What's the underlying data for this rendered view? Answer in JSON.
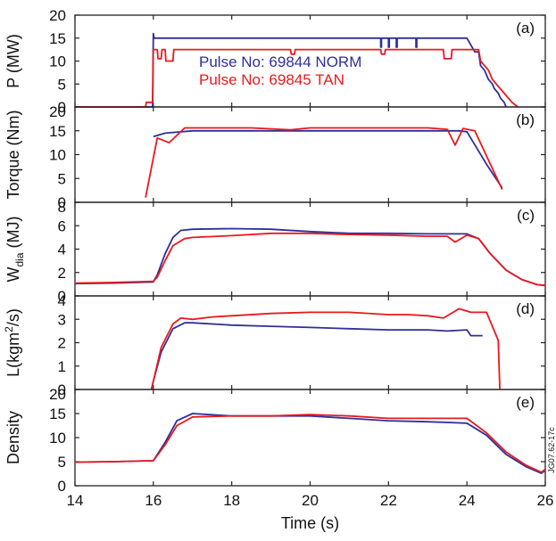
{
  "colors": {
    "series_a": "#2f2f9a",
    "series_b": "#e8191e"
  },
  "tag": "JG07.62-17c",
  "chart_data": {
    "type": "line",
    "xlabel": "Time (s)",
    "xlim": [
      14,
      26
    ],
    "xticks": [
      14,
      16,
      18,
      20,
      22,
      24,
      26
    ],
    "panels": [
      {
        "id": "a",
        "panel_label": "(a)",
        "ylabel": "P (MW)",
        "ylabel_sub": "",
        "ylabel_tail": "",
        "ylim": [
          0,
          20
        ],
        "yticks": [
          0,
          5,
          10,
          15,
          20
        ],
        "legend": [
          {
            "text": "Pulse No: 69844 NORM",
            "color": "#2f2f9a"
          },
          {
            "text": "Pulse No: 69845 TAN",
            "color": "#e8191e"
          }
        ],
        "series": [
          {
            "name": "Pulse No: 69844 NORM",
            "color": "#2f2f9a",
            "x": [
              14,
              15.9,
              15.98,
              16.0,
              16.02,
              16.04,
              21.8,
              21.8,
              21.82,
              21.82,
              22.0,
              22.0,
              22.02,
              22.02,
              22.2,
              22.2,
              22.22,
              22.22,
              22.7,
              22.7,
              22.72,
              22.72,
              24.0,
              24.2,
              24.3,
              24.35,
              24.45,
              24.55,
              24.65,
              24.7,
              24.8,
              24.85,
              24.95,
              25.0
            ],
            "y": [
              0,
              0,
              0,
              16,
              15,
              15,
              15,
              13,
              13,
              15,
              15,
              13,
              13,
              15,
              15,
              13,
              13,
              15,
              15,
              13,
              13,
              15,
              15,
              12,
              12,
              9,
              8,
              6,
              5,
              4,
              3,
              2,
              1,
              0
            ]
          },
          {
            "name": "Pulse No: 69845 TAN",
            "color": "#e8191e",
            "x": [
              14,
              15.8,
              15.82,
              15.98,
              16.0,
              16.1,
              16.12,
              16.2,
              16.22,
              16.3,
              16.32,
              16.5,
              16.52,
              19.5,
              19.52,
              19.6,
              19.62,
              21.8,
              21.82,
              21.9,
              21.92,
              23.4,
              23.42,
              23.6,
              23.62,
              24.3,
              24.35,
              24.45,
              24.55,
              24.65,
              24.75,
              24.85,
              24.95,
              25.05,
              25.15,
              25.3
            ],
            "y": [
              0,
              0,
              1,
              1,
              12.5,
              12.5,
              10.5,
              10.5,
              12.5,
              12.5,
              10,
              10,
              12.5,
              12.5,
              11.5,
              11.5,
              12.5,
              12.5,
              11.5,
              11.5,
              12.5,
              12.5,
              10.5,
              10.5,
              12.5,
              12.5,
              10,
              9,
              8,
              6,
              5,
              4,
              3,
              2,
              1,
              0
            ]
          }
        ]
      },
      {
        "id": "b",
        "panel_label": "(b)",
        "ylabel": "Torque (Nm)",
        "ylabel_sub": "",
        "ylabel_tail": "",
        "ylim": [
          0,
          20
        ],
        "yticks": [
          0,
          5,
          10,
          15,
          20
        ],
        "series": [
          {
            "name": "Pulse No: 69844 NORM",
            "color": "#2f2f9a",
            "x": [
              16.0,
              16.3,
              17,
              18,
              19,
              19.5,
              20,
              21,
              22,
              23,
              23.8,
              24.0,
              24.5,
              24.9
            ],
            "y": [
              13.8,
              14.5,
              15.0,
              15.0,
              15.0,
              15.0,
              15.0,
              15.0,
              15.0,
              15.0,
              15.0,
              14.8,
              8,
              3.0
            ]
          },
          {
            "name": "Pulse No: 69845 TAN",
            "color": "#e8191e",
            "x": [
              15.8,
              16.1,
              16.4,
              16.8,
              17.5,
              18.5,
              19.5,
              20,
              21,
              22,
              23,
              23.5,
              23.7,
              23.9,
              24.2,
              24.9
            ],
            "y": [
              1.0,
              13.5,
              12.5,
              15.6,
              15.6,
              15.6,
              15.2,
              15.6,
              15.6,
              15.6,
              15.6,
              15.3,
              12.0,
              15.5,
              15.0,
              2.7
            ]
          }
        ]
      },
      {
        "id": "c",
        "panel_label": "(c)",
        "ylabel": "W",
        "ylabel_sub": "dia",
        "ylabel_tail": " (MJ)",
        "ylim": [
          0,
          8
        ],
        "yticks": [
          0,
          2,
          4,
          6,
          8
        ],
        "series": [
          {
            "name": "Pulse No: 69844 NORM",
            "color": "#2f2f9a",
            "x": [
              14,
              15,
              16,
              16.1,
              16.3,
              16.5,
              16.7,
              17,
              18,
              19,
              20,
              21,
              22,
              23,
              24,
              24.3,
              24.6,
              25,
              25.4,
              25.8,
              26
            ],
            "y": [
              1.05,
              1.1,
              1.2,
              1.8,
              3.6,
              5.0,
              5.6,
              5.7,
              5.75,
              5.7,
              5.5,
              5.35,
              5.35,
              5.3,
              5.3,
              4.9,
              3.6,
              2.2,
              1.4,
              0.95,
              0.9
            ]
          },
          {
            "name": "Pulse No: 69845 TAN",
            "color": "#e8191e",
            "x": [
              14,
              15,
              16,
              16.1,
              16.3,
              16.5,
              16.8,
              17,
              18,
              19,
              20,
              21,
              22,
              23,
              23.5,
              23.7,
              24,
              24.3,
              24.6,
              25,
              25.4,
              25.8,
              26
            ],
            "y": [
              1.1,
              1.15,
              1.25,
              1.6,
              3.0,
              4.3,
              4.9,
              5.0,
              5.15,
              5.35,
              5.35,
              5.25,
              5.2,
              5.1,
              5.1,
              4.6,
              5.2,
              4.9,
              3.6,
              2.2,
              1.4,
              0.95,
              0.9
            ]
          }
        ]
      },
      {
        "id": "d",
        "panel_label": "(d)",
        "ylabel": "L(kgm",
        "ylabel_sup": "2",
        "ylabel_tail": "/s)",
        "ylim": [
          0,
          4
        ],
        "yticks": [
          0,
          1,
          2,
          3,
          4
        ],
        "series": [
          {
            "name": "Pulse No: 69844 NORM",
            "color": "#2f2f9a",
            "x": [
              15.95,
              16.0,
              16.2,
              16.5,
              16.8,
              17,
              18,
              19,
              20,
              21,
              22,
              23,
              23.5,
              24,
              24.1,
              24.4
            ],
            "y": [
              0,
              0.35,
              1.6,
              2.6,
              2.85,
              2.85,
              2.75,
              2.7,
              2.65,
              2.6,
              2.55,
              2.55,
              2.5,
              2.55,
              2.3,
              2.3
            ]
          },
          {
            "name": "Pulse No: 69845 TAN",
            "color": "#e8191e",
            "x": [
              15.95,
              16.0,
              16.2,
              16.5,
              16.7,
              17,
              17.5,
              18,
              19,
              20,
              21,
              22,
              22.5,
              23,
              23.4,
              23.8,
              24.1,
              24.5,
              24.8,
              24.82,
              24.84
            ],
            "y": [
              0,
              0.35,
              1.8,
              2.8,
              3.05,
              3.0,
              3.1,
              3.15,
              3.25,
              3.3,
              3.3,
              3.2,
              3.2,
              3.15,
              3.05,
              3.45,
              3.3,
              3.3,
              2.1,
              1.0,
              0
            ]
          }
        ]
      },
      {
        "id": "e",
        "panel_label": "(e)",
        "ylabel": "Density",
        "ylabel_sub": "",
        "ylabel_tail": "",
        "ylim": [
          0,
          20
        ],
        "yticks": [
          0,
          5,
          10,
          15,
          20
        ],
        "series": [
          {
            "name": "Pulse No: 69844 NORM",
            "color": "#2f2f9a",
            "x": [
              14,
              15,
              16,
              16.3,
              16.6,
              17,
              18,
              19,
              20,
              21,
              22,
              23,
              24,
              24.5,
              25,
              25.5,
              25.9,
              26
            ],
            "y": [
              4.9,
              5.0,
              5.2,
              9.0,
              13.5,
              15.0,
              14.5,
              14.5,
              14.5,
              14.0,
              13.5,
              13.3,
              13.0,
              10.5,
              6.5,
              4.0,
              2.6,
              3.2
            ]
          },
          {
            "name": "Pulse No: 69845 TAN",
            "color": "#e8191e",
            "x": [
              14,
              15,
              16,
              16.3,
              16.6,
              17,
              18,
              19,
              20,
              21,
              22,
              23,
              24,
              24.5,
              25,
              25.5,
              25.9,
              26
            ],
            "y": [
              4.9,
              5.0,
              5.2,
              8.5,
              12.5,
              14.3,
              14.5,
              14.5,
              14.8,
              14.5,
              14.0,
              14.0,
              14.0,
              11.0,
              7.0,
              4.3,
              2.8,
              3.4
            ]
          }
        ]
      }
    ]
  }
}
